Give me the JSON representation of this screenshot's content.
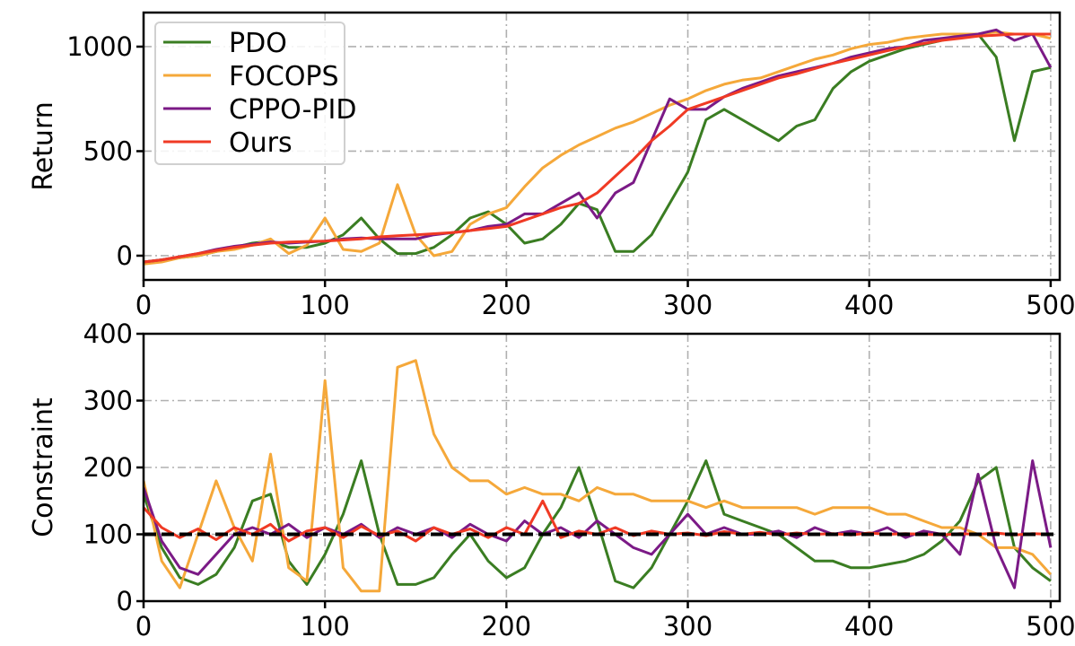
{
  "chart_data": [
    {
      "type": "line",
      "title": "",
      "xlabel": "",
      "ylabel": "Return",
      "xlim": [
        0,
        505
      ],
      "ylim": [
        -116,
        1163
      ],
      "xticks": [
        0,
        100,
        200,
        300,
        400,
        500
      ],
      "yticks": [
        0,
        500,
        1000
      ],
      "grid": true,
      "legend": "top-left",
      "x": [
        0,
        10,
        20,
        30,
        40,
        50,
        60,
        70,
        80,
        90,
        100,
        110,
        120,
        130,
        140,
        150,
        160,
        170,
        180,
        190,
        200,
        210,
        220,
        230,
        240,
        250,
        260,
        270,
        280,
        290,
        300,
        310,
        320,
        330,
        340,
        350,
        360,
        370,
        380,
        390,
        400,
        410,
        420,
        430,
        440,
        450,
        460,
        470,
        480,
        490,
        500
      ],
      "series": [
        {
          "name": "PDO",
          "color": "#3a7d22",
          "values": [
            -30,
            -20,
            -10,
            0,
            20,
            40,
            60,
            70,
            40,
            40,
            60,
            100,
            180,
            80,
            10,
            10,
            40,
            100,
            180,
            210,
            150,
            60,
            80,
            150,
            250,
            220,
            20,
            20,
            100,
            250,
            400,
            650,
            700,
            650,
            600,
            550,
            620,
            650,
            800,
            880,
            930,
            960,
            990,
            1010,
            1030,
            1050,
            1060,
            950,
            550,
            880,
            900
          ]
        },
        {
          "name": "FOCOPS",
          "color": "#f5a83a",
          "values": [
            -40,
            -30,
            -10,
            0,
            20,
            30,
            50,
            80,
            10,
            50,
            180,
            30,
            20,
            60,
            340,
            100,
            0,
            20,
            150,
            200,
            230,
            330,
            420,
            480,
            530,
            570,
            610,
            640,
            680,
            720,
            750,
            790,
            820,
            840,
            850,
            880,
            910,
            940,
            960,
            990,
            1010,
            1020,
            1040,
            1050,
            1060,
            1060,
            1060,
            1070,
            1060,
            1060,
            1040
          ]
        },
        {
          "name": "CPPO-PID",
          "color": "#7b1a86",
          "values": [
            -30,
            -20,
            -5,
            10,
            30,
            45,
            55,
            65,
            60,
            65,
            70,
            80,
            85,
            80,
            80,
            80,
            100,
            110,
            120,
            140,
            150,
            200,
            200,
            250,
            300,
            180,
            300,
            350,
            550,
            750,
            700,
            700,
            760,
            800,
            830,
            860,
            880,
            900,
            920,
            950,
            970,
            990,
            1000,
            1030,
            1040,
            1050,
            1060,
            1080,
            1030,
            1060,
            900
          ]
        },
        {
          "name": "Ours",
          "color": "#f03a24",
          "values": [
            -30,
            -20,
            -5,
            10,
            25,
            40,
            50,
            60,
            65,
            68,
            70,
            75,
            80,
            90,
            95,
            100,
            105,
            110,
            120,
            130,
            140,
            170,
            200,
            230,
            250,
            300,
            380,
            460,
            550,
            620,
            700,
            730,
            760,
            790,
            820,
            850,
            870,
            895,
            920,
            940,
            960,
            980,
            1000,
            1015,
            1030,
            1040,
            1050,
            1055,
            1060,
            1060,
            1060
          ]
        }
      ]
    },
    {
      "type": "line",
      "title": "",
      "xlabel": "",
      "ylabel": "Constraint",
      "xlim": [
        0,
        505
      ],
      "ylim": [
        0,
        400
      ],
      "xticks": [
        0,
        100,
        200,
        300,
        400,
        500
      ],
      "yticks": [
        0,
        100,
        200,
        300,
        400
      ],
      "grid": true,
      "threshold": 100,
      "x": [
        0,
        10,
        20,
        30,
        40,
        50,
        60,
        70,
        80,
        90,
        100,
        110,
        120,
        130,
        140,
        150,
        160,
        170,
        180,
        190,
        200,
        210,
        220,
        230,
        240,
        250,
        260,
        270,
        280,
        290,
        300,
        310,
        320,
        330,
        340,
        350,
        360,
        370,
        380,
        390,
        400,
        410,
        420,
        430,
        440,
        450,
        460,
        470,
        480,
        490,
        500
      ],
      "series": [
        {
          "name": "PDO",
          "color": "#3a7d22",
          "values": [
            160,
            80,
            35,
            25,
            40,
            80,
            150,
            160,
            60,
            25,
            70,
            130,
            210,
            100,
            25,
            25,
            35,
            70,
            100,
            60,
            35,
            50,
            100,
            140,
            200,
            120,
            30,
            20,
            50,
            100,
            150,
            210,
            130,
            120,
            110,
            100,
            80,
            60,
            60,
            50,
            50,
            55,
            60,
            70,
            90,
            120,
            180,
            200,
            80,
            50,
            30
          ]
        },
        {
          "name": "FOCOPS",
          "color": "#f5a83a",
          "values": [
            180,
            60,
            20,
            100,
            180,
            110,
            60,
            220,
            50,
            30,
            330,
            50,
            15,
            15,
            350,
            360,
            250,
            200,
            180,
            180,
            160,
            170,
            160,
            160,
            150,
            170,
            160,
            160,
            150,
            150,
            150,
            140,
            150,
            140,
            140,
            140,
            140,
            130,
            140,
            140,
            140,
            130,
            130,
            120,
            110,
            110,
            100,
            80,
            80,
            70,
            40
          ]
        },
        {
          "name": "CPPO-PID",
          "color": "#7b1a86",
          "values": [
            170,
            90,
            50,
            40,
            70,
            100,
            110,
            100,
            115,
            95,
            110,
            100,
            115,
            95,
            110,
            100,
            110,
            95,
            115,
            100,
            90,
            120,
            100,
            110,
            95,
            120,
            100,
            80,
            70,
            100,
            130,
            100,
            110,
            100,
            100,
            105,
            95,
            110,
            100,
            105,
            100,
            110,
            95,
            105,
            100,
            70,
            190,
            80,
            20,
            210,
            80
          ]
        },
        {
          "name": "Ours",
          "color": "#f03a24",
          "values": [
            140,
            110,
            95,
            108,
            92,
            110,
            100,
            115,
            90,
            105,
            110,
            95,
            112,
            98,
            105,
            90,
            110,
            100,
            108,
            95,
            110,
            100,
            150,
            95,
            105,
            100,
            110,
            98,
            105,
            100,
            102,
            98,
            104,
            100,
            103,
            99,
            102,
            100,
            101,
            99,
            102,
            100,
            101,
            100,
            99,
            101,
            100,
            102,
            99,
            101,
            100
          ]
        }
      ]
    }
  ]
}
